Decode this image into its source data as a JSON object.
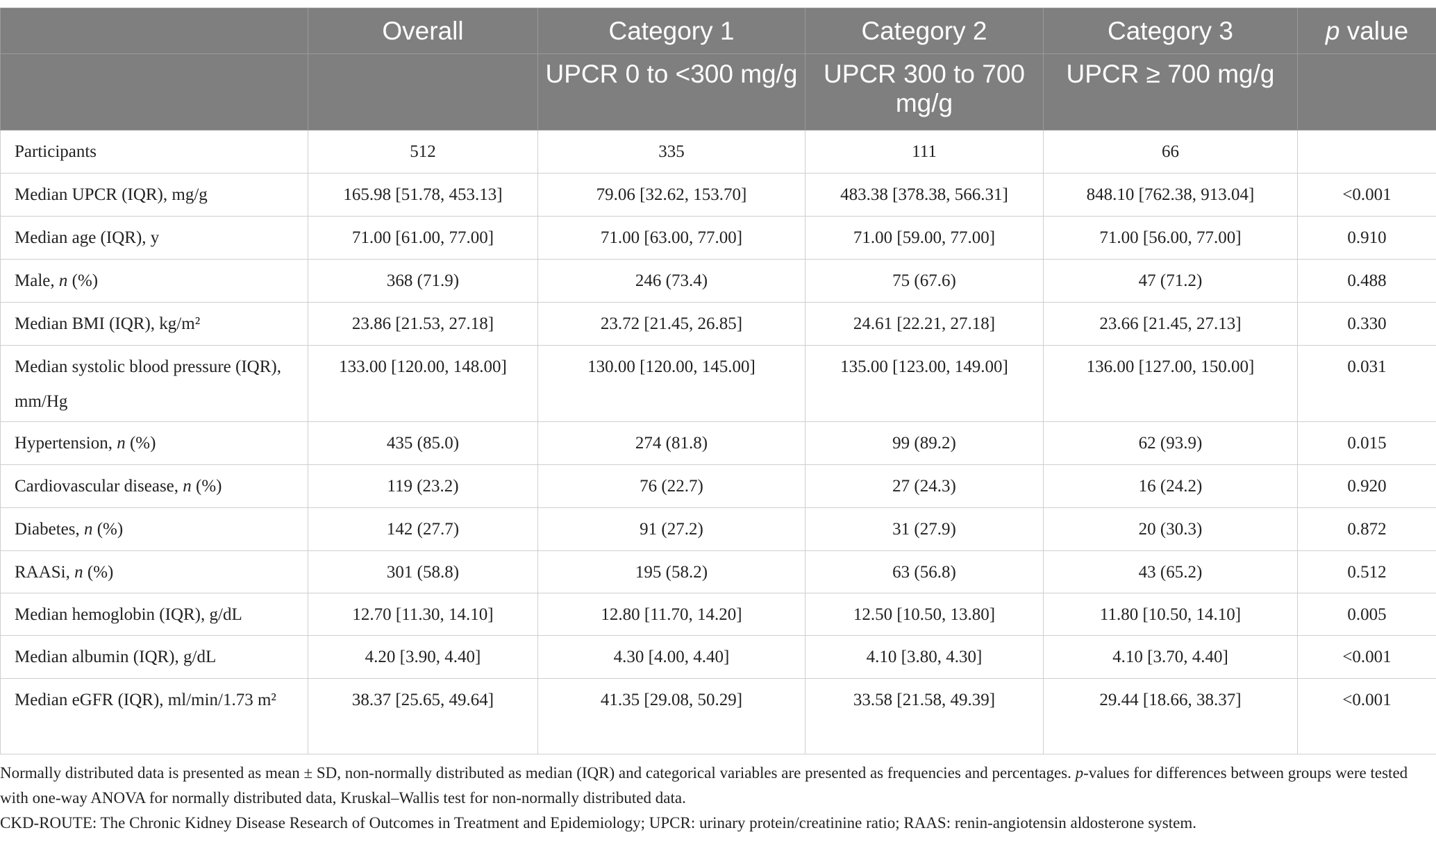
{
  "table": {
    "headers": [
      "Overall",
      "Category 1",
      "Category 2",
      "Category 3",
      [
        {
          "italic": "p"
        },
        " value"
      ]
    ],
    "subheaders": [
      "UPCR 0 to <300 mg/g",
      "UPCR 300 to 700 mg/g",
      "UPCR ≥ 700 mg/g"
    ],
    "rows": [
      {
        "label": "Participants",
        "cells": [
          "512",
          "335",
          "111",
          "66"
        ]
      },
      {
        "label": "Median UPCR (IQR), mg/g",
        "cells": [
          "165.98 [51.78, 453.13]",
          "79.06 [32.62, 153.70]",
          "483.38 [378.38, 566.31]",
          "848.10 [762.38, 913.04]",
          "<0.001"
        ]
      },
      {
        "label": "Median age (IQR), y",
        "cells": [
          "71.00 [61.00, 77.00]",
          "71.00 [63.00, 77.00]",
          "71.00 [59.00, 77.00]",
          "71.00 [56.00, 77.00]",
          "0.910"
        ]
      },
      {
        "label": [
          "Male, ",
          {
            "italic": "n"
          },
          " (%)"
        ],
        "cells": [
          "368 (71.9)",
          "246 (73.4)",
          "75 (67.6)",
          "47 (71.2)",
          "0.488"
        ]
      },
      {
        "label": "Median BMI (IQR), kg/m²",
        "cells": [
          "23.86 [21.53, 27.18]",
          "23.72 [21.45, 26.85]",
          "24.61 [22.21, 27.18]",
          "23.66 [21.45, 27.13]",
          "0.330"
        ]
      },
      {
        "label": "Median systolic blood pressure (IQR), mm/Hg",
        "cells": [
          "133.00 [120.00, 148.00]",
          "130.00 [120.00, 145.00]",
          "135.00 [123.00, 149.00]",
          "136.00 [127.00, 150.00]",
          "0.031"
        ]
      },
      {
        "label": [
          "Hypertension, ",
          {
            "italic": "n"
          },
          " (%)"
        ],
        "cells": [
          "435 (85.0)",
          "274 (81.8)",
          "99 (89.2)",
          "62 (93.9)",
          "0.015"
        ]
      },
      {
        "label": [
          "Cardiovascular disease, ",
          {
            "italic": "n"
          },
          " (%)"
        ],
        "cells": [
          "119 (23.2)",
          "76 (22.7)",
          "27 (24.3)",
          "16 (24.2)",
          "0.920"
        ]
      },
      {
        "label": [
          "Diabetes, ",
          {
            "italic": "n"
          },
          " (%)"
        ],
        "cells": [
          "142 (27.7)",
          "91 (27.2)",
          "31 (27.9)",
          "20 (30.3)",
          "0.872"
        ]
      },
      {
        "label": [
          "RAASi, ",
          {
            "italic": "n"
          },
          " (%)"
        ],
        "cells": [
          "301 (58.8)",
          "195 (58.2)",
          "63 (56.8)",
          "43 (65.2)",
          "0.512"
        ]
      },
      {
        "label": "Median hemoglobin (IQR), g/dL",
        "cells": [
          "12.70 [11.30, 14.10]",
          "12.80 [11.70, 14.20]",
          "12.50 [10.50, 13.80]",
          "11.80 [10.50, 14.10]",
          "0.005"
        ]
      },
      {
        "label": "Median albumin (IQR), g/dL",
        "cells": [
          "4.20 [3.90, 4.40]",
          "4.30 [4.00, 4.40]",
          "4.10 [3.80, 4.30]",
          "4.10 [3.70, 4.40]",
          "<0.001"
        ]
      },
      {
        "label": "Median eGFR (IQR), ml/min/1.73 m²",
        "cells": [
          "38.37 [25.65, 49.64]",
          "41.35 [29.08, 50.29]",
          "33.58 [21.58, 49.39]",
          "29.44 [18.66, 38.37]",
          "<0.001"
        ]
      }
    ]
  },
  "footnotes": [
    [
      "Normally distributed data is presented as mean ± SD, non-normally distributed as median (IQR) and categorical variables are presented as frequencies and percentages. ",
      {
        "italic": "p"
      },
      "-values for differences between groups were tested with one-way ANOVA for normally distributed data, Kruskal–Wallis test for non-normally distributed data."
    ],
    [
      "CKD-ROUTE: The Chronic Kidney Disease Research of Outcomes in Treatment and Epidemiology; UPCR: urinary protein/creatinine ratio; RAAS: renin-angiotensin aldosterone system."
    ]
  ]
}
